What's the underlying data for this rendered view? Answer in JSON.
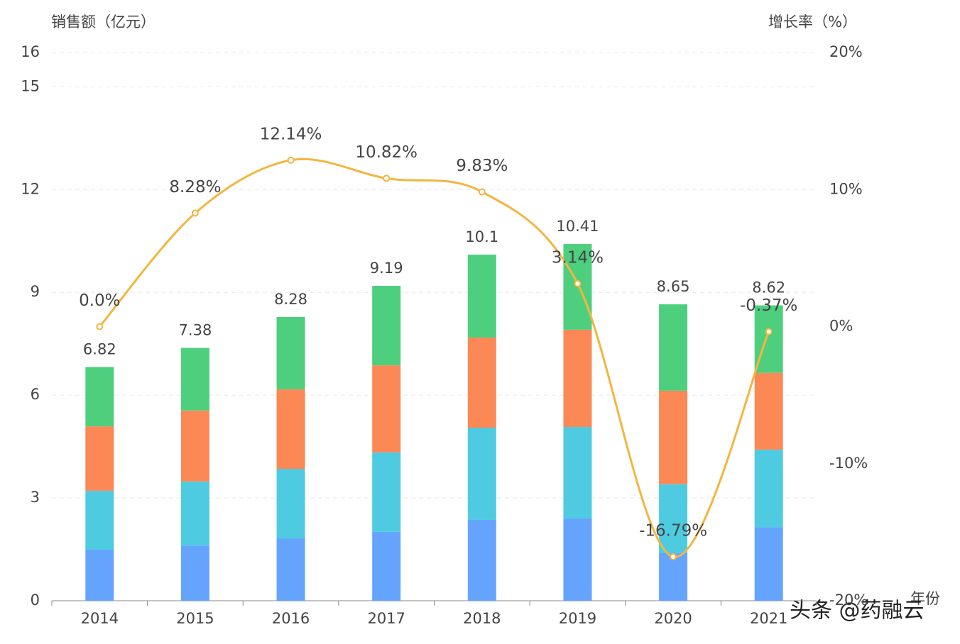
{
  "chart_data": {
    "type": "bar",
    "y_label": "销售额（亿元）",
    "y2_label": "增长率（%）",
    "x_label": "年份",
    "watermark": "头条 @药融云",
    "categories": [
      "2014",
      "2015",
      "2016",
      "2017",
      "2018",
      "2019",
      "2020",
      "2021"
    ],
    "stacked": true,
    "series": [
      {
        "color": "#64a4ff",
        "values": [
          1.49,
          1.61,
          1.82,
          2.01,
          2.36,
          2.4,
          1.4,
          2.15
        ]
      },
      {
        "color": "#4ecbe1",
        "values": [
          1.72,
          1.87,
          2.03,
          2.32,
          2.69,
          2.67,
          2.0,
          2.26
        ]
      },
      {
        "color": "#fb8855",
        "values": [
          1.88,
          2.07,
          2.32,
          2.54,
          2.63,
          2.84,
          2.73,
          2.24
        ]
      },
      {
        "color": "#4dcf7d",
        "values": [
          1.73,
          1.83,
          2.11,
          2.32,
          2.42,
          2.5,
          2.52,
          1.97
        ]
      },
      {
        "type": "line",
        "axis": "y2",
        "color": "#f4b53f",
        "values": [
          0.0,
          8.28,
          12.14,
          10.82,
          9.83,
          3.14,
          -16.79,
          -0.37
        ],
        "value_labels": [
          "0.0%",
          "8.28%",
          "12.14%",
          "10.82%",
          "9.83%",
          "3.14%",
          "-16.79%",
          "-0.37%"
        ]
      }
    ],
    "totals": [
      6.82,
      7.38,
      8.28,
      9.19,
      10.1,
      10.41,
      8.65,
      8.62
    ],
    "ylim": [
      0,
      16
    ],
    "yticks": [
      0,
      3,
      6,
      9,
      12,
      15,
      16
    ],
    "y2lim": [
      -20,
      20
    ],
    "y2ticks": [
      {
        "value": 20,
        "label": "20%"
      },
      {
        "value": 10,
        "label": "10%"
      },
      {
        "value": 0,
        "label": "0%"
      },
      {
        "value": -10,
        "label": "-10%"
      },
      {
        "value": -20,
        "label": "-20%"
      }
    ],
    "grid": true
  }
}
